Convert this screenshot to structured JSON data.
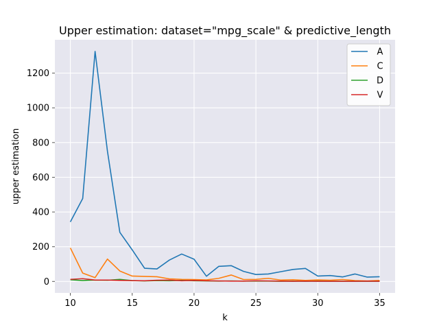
{
  "chart_data": {
    "type": "line",
    "title": "Upper estimation: dataset=\"mpg_scale\" & predictive_length",
    "xlabel": "k",
    "ylabel": "upper estimation",
    "xlim": [
      8.75,
      36.25
    ],
    "ylim": [
      -66,
      1392
    ],
    "x_ticks": [
      10,
      15,
      20,
      25,
      30,
      35
    ],
    "x_tick_labels": [
      "10",
      "15",
      "20",
      "25",
      "30",
      "35"
    ],
    "y_ticks": [
      0,
      200,
      400,
      600,
      800,
      1000,
      1200
    ],
    "y_tick_labels": [
      "0",
      "200",
      "400",
      "600",
      "800",
      "1000",
      "1200"
    ],
    "grid": true,
    "background": "#e6e6ef",
    "legend_position": "top-right",
    "x": [
      10,
      11,
      12,
      13,
      14,
      15,
      16,
      17,
      18,
      19,
      20,
      21,
      22,
      23,
      24,
      25,
      26,
      27,
      28,
      29,
      30,
      31,
      32,
      33,
      34,
      35
    ],
    "series": [
      {
        "name": "A",
        "color": "#1f77b4",
        "values": [
          343,
          478,
          1325,
          750,
          283,
          182,
          76,
          72,
          123,
          158,
          128,
          30,
          87,
          91,
          58,
          40,
          43,
          56,
          69,
          75,
          31,
          34,
          26,
          43,
          25,
          27
        ]
      },
      {
        "name": "C",
        "color": "#ff7f0e",
        "values": [
          193,
          48,
          22,
          129,
          60,
          31,
          29,
          27,
          15,
          12,
          11,
          9,
          18,
          37,
          11,
          12,
          18,
          8,
          10,
          6,
          9,
          7,
          11,
          5,
          3,
          6
        ]
      },
      {
        "name": "D",
        "color": "#2ca02c",
        "values": [
          10,
          5,
          8,
          7,
          12,
          5,
          3,
          5,
          4,
          6,
          4,
          3,
          2,
          3,
          2,
          2,
          2,
          1,
          2,
          1,
          2,
          1,
          1,
          1,
          1,
          1
        ]
      },
      {
        "name": "V",
        "color": "#d62728",
        "values": [
          12,
          16,
          8,
          8,
          6,
          5,
          4,
          7,
          8,
          4,
          6,
          4,
          3,
          2,
          2,
          4,
          3,
          2,
          1,
          2,
          1,
          1,
          1,
          1,
          2,
          1
        ]
      }
    ]
  }
}
